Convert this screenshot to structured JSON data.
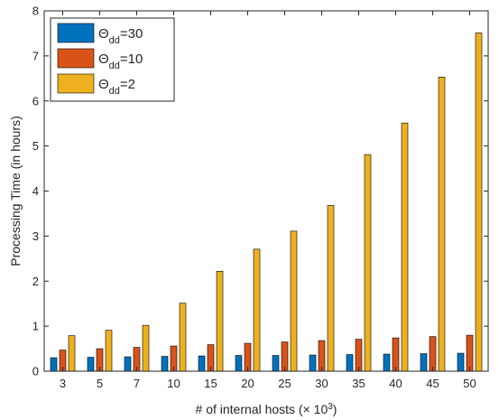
{
  "chart_data": {
    "type": "bar",
    "xlabel": "# of internal hosts (× 10",
    "xlabel_exponent": "3",
    "xlabel_suffix": ")",
    "ylabel": "Processing Time (in hours)",
    "ylim": [
      0,
      8
    ],
    "yticks": [
      0,
      1,
      2,
      3,
      4,
      5,
      6,
      7,
      8
    ],
    "categories": [
      "3",
      "5",
      "7",
      "10",
      "15",
      "20",
      "25",
      "30",
      "35",
      "40",
      "45",
      "50"
    ],
    "legend_position": "top-left",
    "grid": false,
    "series": [
      {
        "name": "Θ",
        "subscript": "dd",
        "suffix": "=30",
        "color": "#0072BD",
        "values": [
          0.3,
          0.31,
          0.32,
          0.33,
          0.34,
          0.35,
          0.35,
          0.36,
          0.37,
          0.38,
          0.39,
          0.4
        ]
      },
      {
        "name": "Θ",
        "subscript": "dd",
        "suffix": "=10",
        "color": "#D95319",
        "values": [
          0.47,
          0.5,
          0.53,
          0.56,
          0.59,
          0.62,
          0.65,
          0.68,
          0.71,
          0.74,
          0.77,
          0.8
        ]
      },
      {
        "name": "Θ",
        "subscript": "dd",
        "suffix": "=2",
        "color": "#EDB120",
        "values": [
          0.79,
          0.91,
          1.02,
          1.51,
          2.22,
          2.71,
          3.11,
          3.68,
          4.81,
          5.51,
          6.53,
          7.51
        ]
      }
    ]
  }
}
